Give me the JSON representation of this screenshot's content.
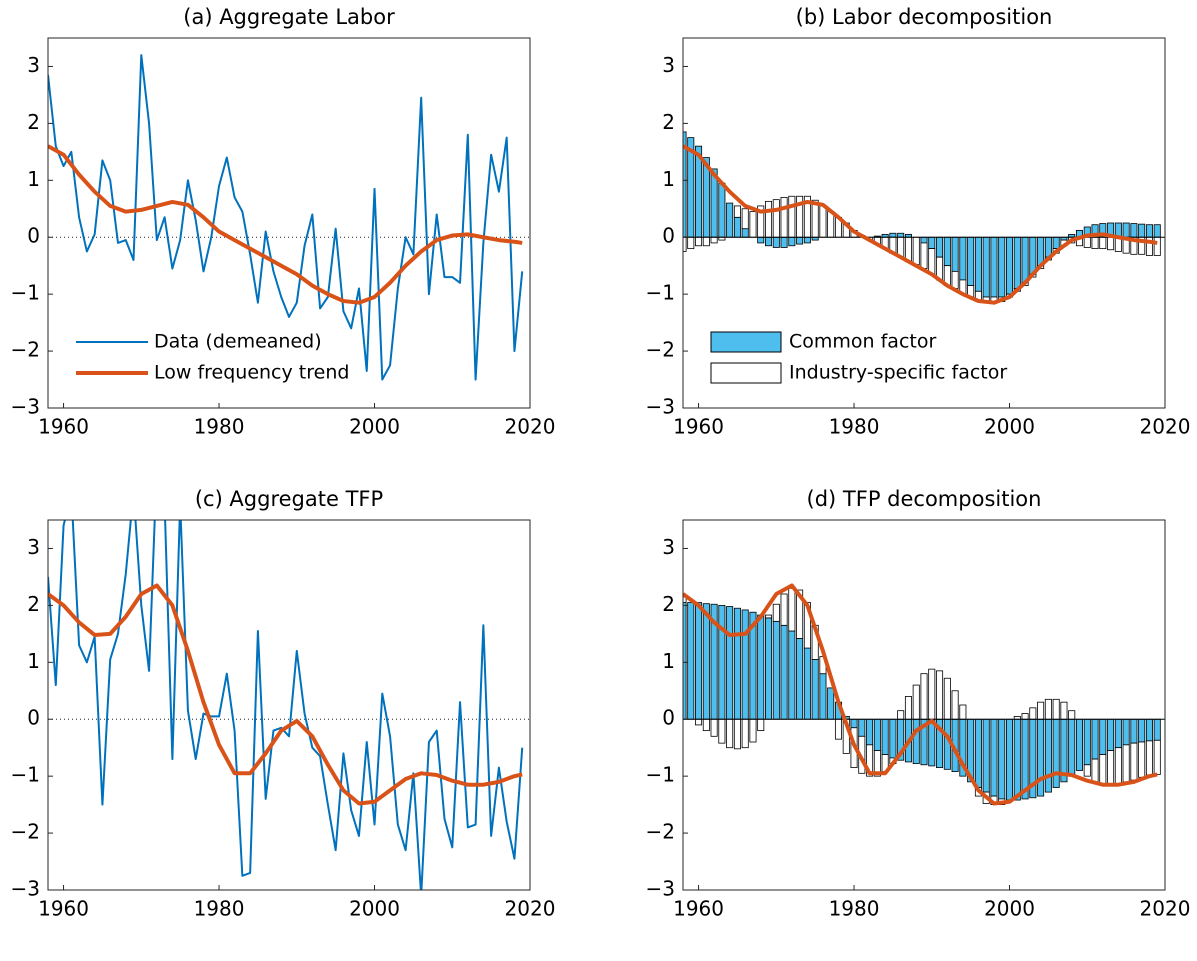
{
  "chart_data": [
    {
      "type": "line",
      "title": "(a) Aggregate Labor",
      "x": [
        1958,
        1959,
        1960,
        1961,
        1962,
        1963,
        1964,
        1965,
        1966,
        1967,
        1968,
        1969,
        1970,
        1971,
        1972,
        1973,
        1974,
        1975,
        1976,
        1977,
        1978,
        1979,
        1980,
        1981,
        1982,
        1983,
        1984,
        1985,
        1986,
        1987,
        1988,
        1989,
        1990,
        1991,
        1992,
        1993,
        1994,
        1995,
        1996,
        1997,
        1998,
        1999,
        2000,
        2001,
        2002,
        2003,
        2004,
        2005,
        2006,
        2007,
        2008,
        2009,
        2010,
        2011,
        2012,
        2013,
        2014,
        2015,
        2016,
        2017,
        2018,
        2019
      ],
      "xlim": [
        1958,
        2020
      ],
      "xticks": [
        1960,
        1980,
        2000,
        2020
      ],
      "ylim": [
        -3,
        3.5
      ],
      "yticks": [
        {
          "value": -3,
          "label": "−3"
        },
        {
          "value": -2,
          "label": "−2"
        },
        {
          "value": -1,
          "label": "−1"
        },
        0,
        1,
        2,
        3
      ],
      "zero_line": "dotted",
      "legend": "lower left",
      "series": [
        {
          "name": "Data (demeaned)",
          "color": "#0072bd",
          "width": 2,
          "values": [
            2.85,
            1.6,
            1.25,
            1.5,
            0.35,
            -0.25,
            0.05,
            1.35,
            1.0,
            -0.1,
            -0.05,
            -0.4,
            3.2,
            2.0,
            -0.05,
            0.35,
            -0.55,
            -0.05,
            1.0,
            0.3,
            -0.6,
            0.0,
            0.9,
            1.4,
            0.7,
            0.45,
            -0.3,
            -1.15,
            0.1,
            -0.6,
            -1.05,
            -1.4,
            -1.15,
            -0.15,
            0.4,
            -1.25,
            -1.05,
            0.15,
            -1.3,
            -1.6,
            -0.9,
            -2.35,
            0.85,
            -2.5,
            -2.25,
            -0.9,
            0.0,
            -0.3,
            2.45,
            -1.0,
            0.4,
            -0.7,
            -0.7,
            -0.8,
            1.8,
            -2.5,
            -0.1,
            1.45,
            0.8,
            1.75,
            -2.0,
            -0.6
          ]
        },
        {
          "name": "Low frequency trend",
          "color": "#d95319",
          "width": 4,
          "x": [
            1958,
            1960,
            1962,
            1964,
            1966,
            1968,
            1970,
            1972,
            1974,
            1976,
            1978,
            1980,
            1982,
            1984,
            1986,
            1988,
            1990,
            1992,
            1994,
            1996,
            1998,
            2000,
            2002,
            2004,
            2006,
            2008,
            2010,
            2012,
            2014,
            2016,
            2018,
            2019
          ],
          "values": [
            1.6,
            1.45,
            1.1,
            0.8,
            0.55,
            0.45,
            0.48,
            0.55,
            0.62,
            0.57,
            0.35,
            0.1,
            -0.05,
            -0.2,
            -0.35,
            -0.5,
            -0.65,
            -0.85,
            -1.0,
            -1.12,
            -1.15,
            -1.05,
            -0.8,
            -0.5,
            -0.25,
            -0.05,
            0.03,
            0.05,
            0.0,
            -0.05,
            -0.08,
            -0.1
          ]
        }
      ]
    },
    {
      "type": "bar",
      "title": "(b) Labor decomposition",
      "x": [
        1958,
        1959,
        1960,
        1961,
        1962,
        1963,
        1964,
        1965,
        1966,
        1967,
        1968,
        1969,
        1970,
        1971,
        1972,
        1973,
        1974,
        1975,
        1976,
        1977,
        1978,
        1979,
        1980,
        1981,
        1982,
        1983,
        1984,
        1985,
        1986,
        1987,
        1988,
        1989,
        1990,
        1991,
        1992,
        1993,
        1994,
        1995,
        1996,
        1997,
        1998,
        1999,
        2000,
        2001,
        2002,
        2003,
        2004,
        2005,
        2006,
        2007,
        2008,
        2009,
        2010,
        2011,
        2012,
        2013,
        2014,
        2015,
        2016,
        2017,
        2018,
        2019
      ],
      "xlim": [
        1958,
        2020
      ],
      "xticks": [
        1960,
        1980,
        2000,
        2020
      ],
      "ylim": [
        -3,
        3.5
      ],
      "yticks": [
        {
          "value": -3,
          "label": "−3"
        },
        {
          "value": -2,
          "label": "−2"
        },
        {
          "value": -1,
          "label": "−1"
        },
        0,
        1,
        2,
        3
      ],
      "zero_line": "solid",
      "legend": "lower left",
      "series": [
        {
          "name": "Common factor",
          "type": "bar",
          "color": "#4dbeee",
          "values": [
            1.85,
            1.75,
            1.6,
            1.4,
            1.2,
            0.95,
            0.6,
            0.35,
            0.15,
            0.0,
            -0.1,
            -0.15,
            -0.18,
            -0.18,
            -0.15,
            -0.12,
            -0.1,
            -0.05,
            0.0,
            0.0,
            0.0,
            0.0,
            0.0,
            0.0,
            0.0,
            0.02,
            0.05,
            0.07,
            0.07,
            0.05,
            0.0,
            -0.1,
            -0.2,
            -0.35,
            -0.5,
            -0.6,
            -0.75,
            -0.85,
            -0.95,
            -1.05,
            -1.05,
            -1.05,
            -1.0,
            -0.9,
            -0.8,
            -0.65,
            -0.5,
            -0.35,
            -0.2,
            -0.05,
            0.05,
            0.12,
            0.18,
            0.22,
            0.24,
            0.25,
            0.25,
            0.25,
            0.24,
            0.23,
            0.22,
            0.22
          ]
        },
        {
          "name": "Industry-specific factor",
          "type": "bar",
          "color": "#ffffff",
          "values": [
            -0.25,
            -0.2,
            -0.15,
            -0.15,
            -0.1,
            -0.05,
            0.0,
            0.2,
            0.35,
            0.45,
            0.55,
            0.63,
            0.66,
            0.7,
            0.72,
            0.72,
            0.72,
            0.65,
            0.55,
            0.45,
            0.35,
            0.25,
            0.12,
            0.03,
            -0.05,
            -0.12,
            -0.2,
            -0.28,
            -0.35,
            -0.42,
            -0.48,
            -0.45,
            -0.45,
            -0.4,
            -0.35,
            -0.3,
            -0.25,
            -0.2,
            -0.15,
            -0.1,
            -0.1,
            -0.08,
            -0.05,
            -0.05,
            -0.05,
            -0.05,
            -0.05,
            -0.05,
            -0.08,
            -0.1,
            -0.1,
            -0.15,
            -0.18,
            -0.2,
            -0.2,
            -0.22,
            -0.25,
            -0.28,
            -0.3,
            -0.3,
            -0.32,
            -0.32
          ]
        },
        {
          "type": "line",
          "color": "#d95319",
          "width": 4,
          "x": [
            1958,
            1960,
            1962,
            1964,
            1966,
            1968,
            1970,
            1972,
            1974,
            1976,
            1978,
            1980,
            1982,
            1984,
            1986,
            1988,
            1990,
            1992,
            1994,
            1996,
            1998,
            2000,
            2002,
            2004,
            2006,
            2008,
            2010,
            2012,
            2014,
            2016,
            2018,
            2019
          ],
          "values": [
            1.6,
            1.45,
            1.1,
            0.8,
            0.55,
            0.45,
            0.48,
            0.55,
            0.62,
            0.57,
            0.35,
            0.1,
            -0.05,
            -0.2,
            -0.35,
            -0.5,
            -0.65,
            -0.85,
            -1.0,
            -1.12,
            -1.15,
            -1.05,
            -0.8,
            -0.5,
            -0.25,
            -0.05,
            0.03,
            0.05,
            0.0,
            -0.05,
            -0.08,
            -0.1
          ]
        }
      ]
    },
    {
      "type": "line",
      "title": "(c) Aggregate TFP",
      "x": [
        1958,
        1959,
        1960,
        1961,
        1962,
        1963,
        1964,
        1965,
        1966,
        1967,
        1968,
        1969,
        1970,
        1971,
        1972,
        1973,
        1974,
        1975,
        1976,
        1977,
        1978,
        1979,
        1980,
        1981,
        1982,
        1983,
        1984,
        1985,
        1986,
        1987,
        1988,
        1989,
        1990,
        1991,
        1992,
        1993,
        1994,
        1995,
        1996,
        1997,
        1998,
        1999,
        2000,
        2001,
        2002,
        2003,
        2004,
        2005,
        2006,
        2007,
        2008,
        2009,
        2010,
        2011,
        2012,
        2013,
        2014,
        2015,
        2016,
        2017,
        2018,
        2019
      ],
      "xlim": [
        1958,
        2020
      ],
      "xticks": [
        1960,
        1980,
        2000,
        2020
      ],
      "ylim": [
        -3,
        3.5
      ],
      "yticks": [
        {
          "value": -3,
          "label": "−3"
        },
        {
          "value": -2,
          "label": "−2"
        },
        {
          "value": -1,
          "label": "−1"
        },
        0,
        1,
        2,
        3
      ],
      "zero_line": "dotted",
      "series": [
        {
          "color": "#0072bd",
          "width": 2,
          "values": [
            2.5,
            0.6,
            3.4,
            4.0,
            1.3,
            1.0,
            1.45,
            -1.5,
            1.05,
            1.5,
            2.55,
            4.0,
            2.0,
            0.85,
            4.5,
            3.8,
            -0.7,
            3.8,
            0.15,
            -0.7,
            0.1,
            0.05,
            0.05,
            0.8,
            -0.2,
            -2.75,
            -2.7,
            1.55,
            -1.4,
            -0.2,
            -0.15,
            -0.3,
            1.2,
            0.1,
            -0.5,
            -0.65,
            -1.5,
            -2.3,
            -0.6,
            -1.6,
            -2.05,
            -0.4,
            -1.85,
            0.45,
            -0.3,
            -1.85,
            -2.3,
            -0.95,
            -3.1,
            -0.4,
            -0.2,
            -1.75,
            -2.25,
            0.3,
            -1.9,
            -1.85,
            1.65,
            -2.05,
            -0.85,
            -1.8,
            -2.45,
            -0.5
          ]
        },
        {
          "color": "#d95319",
          "width": 4,
          "x": [
            1958,
            1960,
            1962,
            1964,
            1966,
            1968,
            1970,
            1972,
            1974,
            1976,
            1978,
            1980,
            1982,
            1984,
            1986,
            1988,
            1990,
            1992,
            1994,
            1996,
            1998,
            2000,
            2002,
            2004,
            2006,
            2008,
            2010,
            2012,
            2014,
            2016,
            2018,
            2019
          ],
          "values": [
            2.2,
            2.0,
            1.7,
            1.48,
            1.5,
            1.8,
            2.2,
            2.35,
            2.0,
            1.2,
            0.3,
            -0.45,
            -0.95,
            -0.95,
            -0.6,
            -0.2,
            -0.03,
            -0.3,
            -0.8,
            -1.25,
            -1.48,
            -1.45,
            -1.25,
            -1.05,
            -0.95,
            -0.98,
            -1.08,
            -1.15,
            -1.15,
            -1.1,
            -1.0,
            -0.97
          ]
        }
      ]
    },
    {
      "type": "bar",
      "title": "(d) TFP decomposition",
      "x": [
        1958,
        1959,
        1960,
        1961,
        1962,
        1963,
        1964,
        1965,
        1966,
        1967,
        1968,
        1969,
        1970,
        1971,
        1972,
        1973,
        1974,
        1975,
        1976,
        1977,
        1978,
        1979,
        1980,
        1981,
        1982,
        1983,
        1984,
        1985,
        1986,
        1987,
        1988,
        1989,
        1990,
        1991,
        1992,
        1993,
        1994,
        1995,
        1996,
        1997,
        1998,
        1999,
        2000,
        2001,
        2002,
        2003,
        2004,
        2005,
        2006,
        2007,
        2008,
        2009,
        2010,
        2011,
        2012,
        2013,
        2014,
        2015,
        2016,
        2017,
        2018,
        2019
      ],
      "xlim": [
        1958,
        2020
      ],
      "xticks": [
        1960,
        1980,
        2000,
        2020
      ],
      "ylim": [
        -3,
        3.5
      ],
      "yticks": [
        {
          "value": -3,
          "label": "−3"
        },
        {
          "value": -2,
          "label": "−2"
        },
        {
          "value": -1,
          "label": "−1"
        },
        0,
        1,
        2,
        3
      ],
      "zero_line": "solid",
      "series": [
        {
          "type": "bar",
          "color": "#4dbeee",
          "values": [
            2.05,
            2.05,
            2.05,
            2.03,
            2.02,
            2.0,
            1.98,
            1.95,
            1.92,
            1.88,
            1.83,
            1.78,
            1.72,
            1.65,
            1.55,
            1.42,
            1.25,
            1.05,
            0.8,
            0.55,
            0.3,
            0.05,
            -0.15,
            -0.3,
            -0.45,
            -0.55,
            -0.62,
            -0.68,
            -0.72,
            -0.75,
            -0.78,
            -0.8,
            -0.82,
            -0.85,
            -0.88,
            -0.92,
            -1.0,
            -1.1,
            -1.2,
            -1.28,
            -1.35,
            -1.4,
            -1.42,
            -1.42,
            -1.4,
            -1.38,
            -1.35,
            -1.28,
            -1.2,
            -1.1,
            -1.0,
            -0.9,
            -0.8,
            -0.7,
            -0.62,
            -0.55,
            -0.5,
            -0.45,
            -0.42,
            -0.4,
            -0.38,
            -0.37
          ]
        },
        {
          "type": "bar",
          "color": "#ffffff",
          "values": [
            0.1,
            0.0,
            -0.1,
            -0.2,
            -0.3,
            -0.42,
            -0.5,
            -0.52,
            -0.5,
            -0.4,
            -0.2,
            0.05,
            0.3,
            0.55,
            0.75,
            0.85,
            0.8,
            0.6,
            0.3,
            0.0,
            -0.35,
            -0.6,
            -0.7,
            -0.65,
            -0.55,
            -0.45,
            -0.3,
            -0.1,
            0.15,
            0.4,
            0.6,
            0.8,
            0.88,
            0.85,
            0.72,
            0.5,
            0.25,
            0.0,
            -0.15,
            -0.2,
            -0.15,
            -0.1,
            0.0,
            0.05,
            0.1,
            0.2,
            0.3,
            0.35,
            0.35,
            0.3,
            0.15,
            0.0,
            -0.2,
            -0.4,
            -0.52,
            -0.6,
            -0.65,
            -0.65,
            -0.65,
            -0.62,
            -0.6,
            -0.6
          ]
        },
        {
          "type": "line",
          "color": "#d95319",
          "width": 4,
          "x": [
            1958,
            1960,
            1962,
            1964,
            1966,
            1968,
            1970,
            1972,
            1974,
            1976,
            1978,
            1980,
            1982,
            1984,
            1986,
            1988,
            1990,
            1992,
            1994,
            1996,
            1998,
            2000,
            2002,
            2004,
            2006,
            2008,
            2010,
            2012,
            2014,
            2016,
            2018,
            2019
          ],
          "values": [
            2.2,
            2.0,
            1.7,
            1.48,
            1.5,
            1.8,
            2.2,
            2.35,
            2.0,
            1.2,
            0.3,
            -0.45,
            -0.95,
            -0.95,
            -0.6,
            -0.2,
            -0.03,
            -0.3,
            -0.8,
            -1.25,
            -1.48,
            -1.45,
            -1.25,
            -1.05,
            -0.95,
            -0.98,
            -1.08,
            -1.15,
            -1.15,
            -1.1,
            -1.0,
            -0.97
          ]
        }
      ]
    }
  ]
}
